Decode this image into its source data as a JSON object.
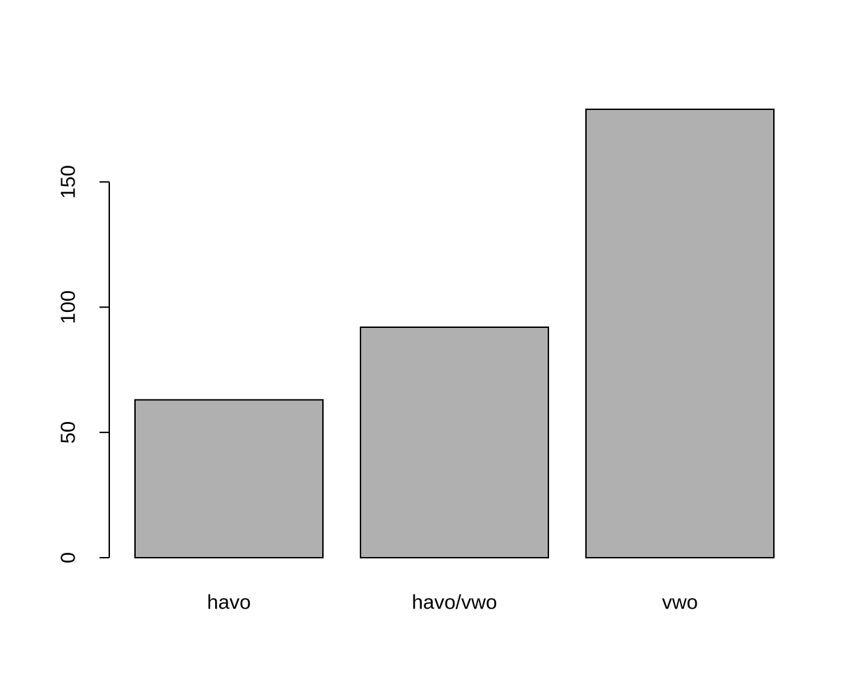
{
  "chart_data": {
    "type": "bar",
    "categories": [
      "havo",
      "havo/vwo",
      "vwo"
    ],
    "values": [
      63,
      92,
      179
    ],
    "color": "#b0b0b0",
    "ylim": [
      0,
      179
    ],
    "yticks": [
      0,
      50,
      100,
      150
    ]
  }
}
